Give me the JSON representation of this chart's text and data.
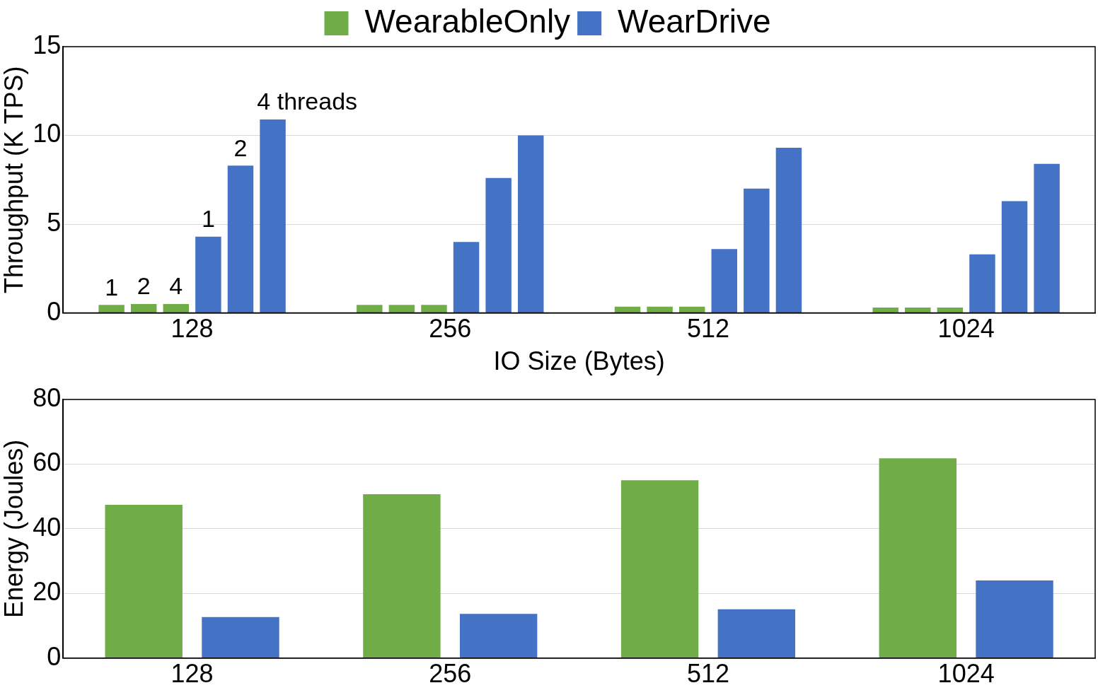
{
  "chart_data": [
    {
      "type": "bar",
      "xlabel": "IO Size (Bytes)",
      "ylabel": "Throughput (K TPS)",
      "categories": [
        "128",
        "256",
        "512",
        "1024"
      ],
      "ylim": [
        0,
        15
      ],
      "yticks": [
        0,
        5,
        10,
        15
      ],
      "grid": "y",
      "legend": "top",
      "series": [
        {
          "name": "WearableOnly",
          "color": "#70ad47",
          "values": [
            0.45,
            0.45,
            0.35,
            0.3
          ]
        },
        {
          "color": "#70ad47",
          "values": [
            0.5,
            0.45,
            0.35,
            0.3
          ]
        },
        {
          "color": "#70ad47",
          "values": [
            0.5,
            0.45,
            0.35,
            0.3
          ]
        },
        {
          "name": "WearDrive",
          "color": "#4472c4",
          "values": [
            4.3,
            4.0,
            3.6,
            3.3
          ]
        },
        {
          "color": "#4472c4",
          "values": [
            8.3,
            7.6,
            7.0,
            6.3
          ]
        },
        {
          "color": "#4472c4",
          "values": [
            10.9,
            10.0,
            9.3,
            8.4
          ]
        }
      ],
      "annotations": [
        "1",
        "2",
        "4",
        "1",
        "2",
        "4 threads"
      ]
    },
    {
      "type": "bar",
      "ylabel": "Energy (Joules)",
      "categories": [
        "128",
        "256",
        "512",
        "1024"
      ],
      "ylim": [
        0,
        80
      ],
      "yticks": [
        0,
        20,
        40,
        60,
        80
      ],
      "grid": "y",
      "series": [
        {
          "color": "#70ad47",
          "values": [
            47.4,
            50.7,
            55,
            61.8
          ]
        },
        {
          "color": "#4472c4",
          "values": [
            12.7,
            13.7,
            15.1,
            24
          ]
        }
      ]
    }
  ]
}
